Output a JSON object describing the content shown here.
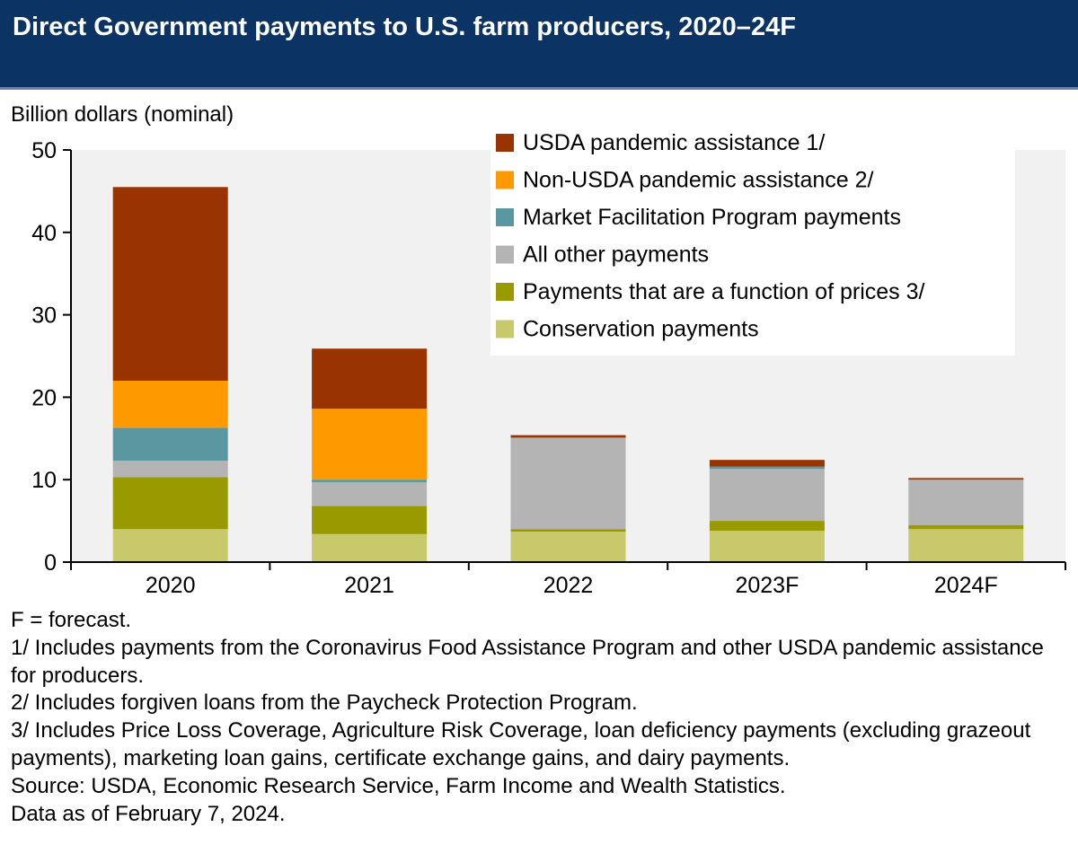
{
  "title": "Direct Government payments to U.S. farm producers, 2020–24F",
  "chart_data": {
    "type": "bar",
    "stacked": true,
    "ylabel": "Billion dollars (nominal)",
    "xlabel": "",
    "ylim": [
      0,
      50
    ],
    "yticks": [
      0,
      10,
      20,
      30,
      40,
      50
    ],
    "grid": false,
    "legend_position": "top-right",
    "categories": [
      "2020",
      "2021",
      "2022",
      "2023F",
      "2024F"
    ],
    "series": [
      {
        "name": "Conservation payments",
        "color": "#c8c96a",
        "values": [
          4.0,
          3.4,
          3.7,
          3.8,
          4.0
        ]
      },
      {
        "name": "Payments that are a function of prices 3/",
        "color": "#999900",
        "values": [
          6.3,
          3.4,
          0.3,
          1.2,
          0.5
        ]
      },
      {
        "name": "All other payments",
        "color": "#b4b4b4",
        "values": [
          2.0,
          2.9,
          11.1,
          6.3,
          5.5
        ]
      },
      {
        "name": "Market Facilitation Program payments",
        "color": "#5a97a0",
        "values": [
          4.0,
          0.3,
          0.0,
          0.3,
          0.0
        ]
      },
      {
        "name": "Non-USDA pandemic assistance 2/",
        "color": "#ff9900",
        "values": [
          5.7,
          8.6,
          0.0,
          0.0,
          0.0
        ]
      },
      {
        "name": "USDA pandemic assistance 1/",
        "color": "#993300",
        "values": [
          23.5,
          7.3,
          0.3,
          0.8,
          0.2
        ]
      }
    ],
    "legend_order": [
      "USDA pandemic assistance 1/",
      "Non-USDA pandemic assistance 2/",
      "Market Facilitation Program payments",
      "All other payments",
      "Payments that are a function of prices 3/",
      "Conservation payments"
    ]
  },
  "notes": [
    "F = forecast.",
    "1/ Includes payments from the Coronavirus Food Assistance Program and other USDA pandemic assistance for producers.",
    "2/ Includes forgiven loans from the Paycheck Protection Program.",
    "3/ Includes Price Loss Coverage, Agriculture Risk Coverage, loan deficiency payments (excluding grazeout payments), marketing loan gains, certificate exchange gains, and dairy payments.",
    "Source: USDA, Economic Research Service, Farm Income and Wealth Statistics.",
    "Data as of February 7, 2024."
  ]
}
